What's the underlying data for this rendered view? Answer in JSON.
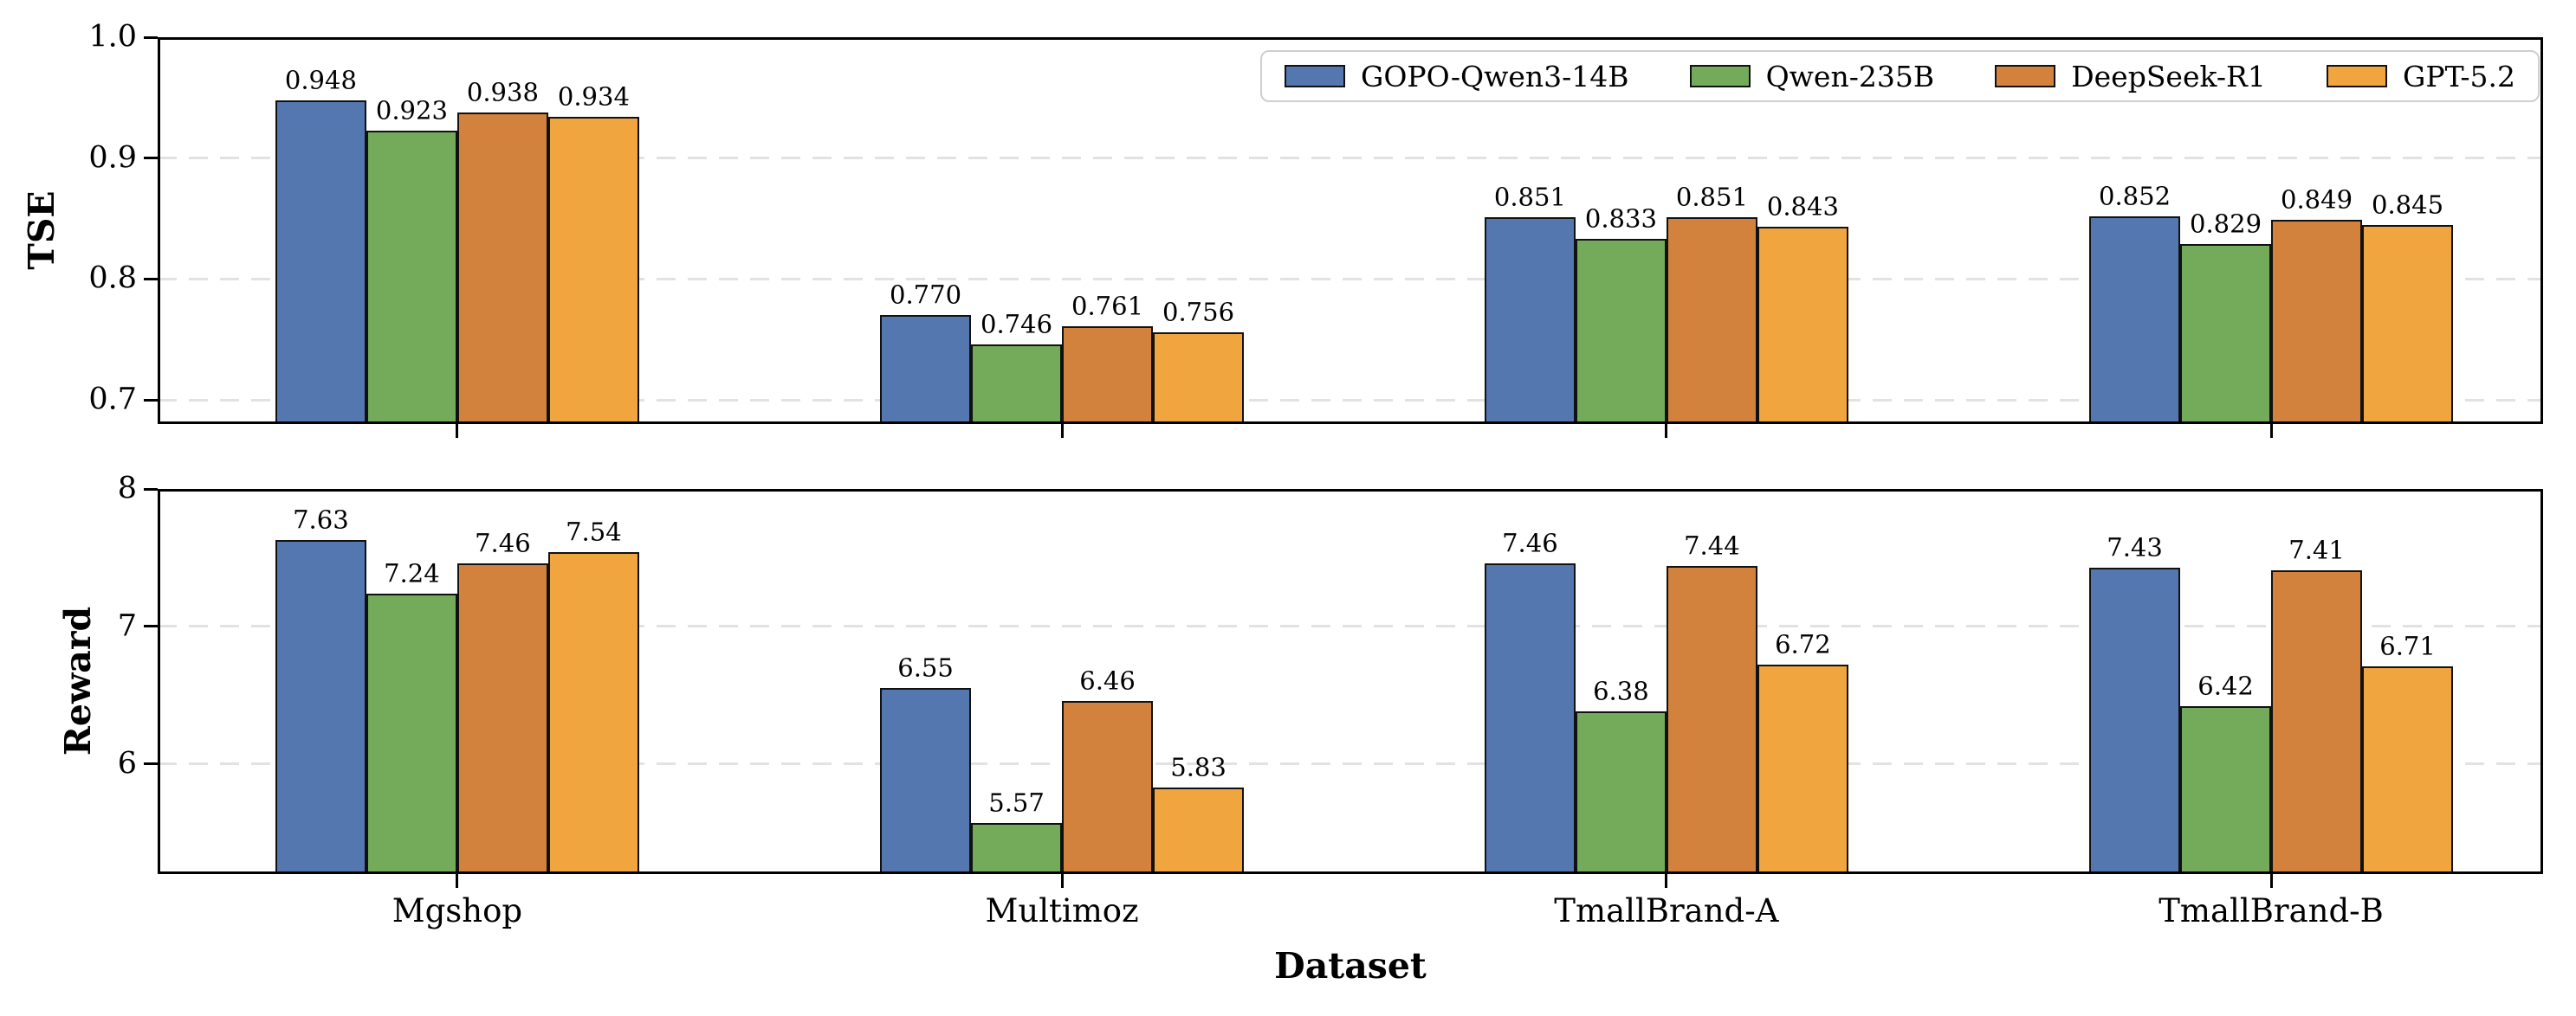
{
  "figure": {
    "background": "#ffffff",
    "xlabel": "Dataset"
  },
  "legend": {
    "position": "upper right",
    "items": [
      "GOPO-Qwen3-14B",
      "Qwen-235B",
      "DeepSeek-R1",
      "GPT-5.2"
    ]
  },
  "colors": {
    "GOPO-Qwen3-14B": "#5477B0",
    "Qwen-235B": "#74AB5A",
    "DeepSeek-R1": "#D3823E",
    "GPT-5.2": "#F0A53E",
    "bar_edge": "#111111",
    "grid": "#e2e2e2",
    "legend_border": "#cfcfcf"
  },
  "chart_data": [
    {
      "type": "bar",
      "subplot": "top",
      "ylabel": "TSE",
      "xlabel": "",
      "categories": [
        "Mgshop",
        "Multimoz",
        "TmallBrand-A",
        "TmallBrand-B"
      ],
      "ylim": [
        0.68,
        1.0
      ],
      "grid": "horizontal-dashed",
      "yticks": [
        {
          "value": 0.7,
          "label": "0.7"
        },
        {
          "value": 0.8,
          "label": "0.8"
        },
        {
          "value": 0.9,
          "label": "0.9"
        },
        {
          "value": 1.0,
          "label": "1.0"
        }
      ],
      "series": [
        {
          "name": "GOPO-Qwen3-14B",
          "color": "#5477B0",
          "values": [
            0.948,
            0.77,
            0.851,
            0.852
          ],
          "labels": [
            "0.948",
            "0.770",
            "0.851",
            "0.852"
          ]
        },
        {
          "name": "Qwen-235B",
          "color": "#74AB5A",
          "values": [
            0.923,
            0.746,
            0.833,
            0.829
          ],
          "labels": [
            "0.923",
            "0.746",
            "0.833",
            "0.829"
          ]
        },
        {
          "name": "DeepSeek-R1",
          "color": "#D3823E",
          "values": [
            0.938,
            0.761,
            0.851,
            0.849
          ],
          "labels": [
            "0.938",
            "0.761",
            "0.851",
            "0.849"
          ]
        },
        {
          "name": "GPT-5.2",
          "color": "#F0A53E",
          "values": [
            0.934,
            0.756,
            0.843,
            0.845
          ],
          "labels": [
            "0.934",
            "0.756",
            "0.843",
            "0.845"
          ]
        }
      ]
    },
    {
      "type": "bar",
      "subplot": "bottom",
      "ylabel": "Reward",
      "xlabel": "Dataset",
      "categories": [
        "Mgshop",
        "Multimoz",
        "TmallBrand-A",
        "TmallBrand-B"
      ],
      "ylim": [
        5.2,
        8.0
      ],
      "grid": "horizontal-dashed",
      "yticks": [
        {
          "value": 6,
          "label": "6"
        },
        {
          "value": 7,
          "label": "7"
        },
        {
          "value": 8,
          "label": "8"
        }
      ],
      "series": [
        {
          "name": "GOPO-Qwen3-14B",
          "color": "#5477B0",
          "values": [
            7.63,
            6.55,
            7.46,
            7.43
          ],
          "labels": [
            "7.63",
            "6.55",
            "7.46",
            "7.43"
          ]
        },
        {
          "name": "Qwen-235B",
          "color": "#74AB5A",
          "values": [
            7.24,
            5.57,
            6.38,
            6.42
          ],
          "labels": [
            "7.24",
            "5.57",
            "6.38",
            "6.42"
          ]
        },
        {
          "name": "DeepSeek-R1",
          "color": "#D3823E",
          "values": [
            7.46,
            6.46,
            7.44,
            7.41
          ],
          "labels": [
            "7.46",
            "6.46",
            "7.44",
            "7.41"
          ]
        },
        {
          "name": "GPT-5.2",
          "color": "#F0A53E",
          "values": [
            7.54,
            5.83,
            6.72,
            6.71
          ],
          "labels": [
            "7.54",
            "5.83",
            "6.72",
            "6.71"
          ]
        }
      ]
    }
  ]
}
